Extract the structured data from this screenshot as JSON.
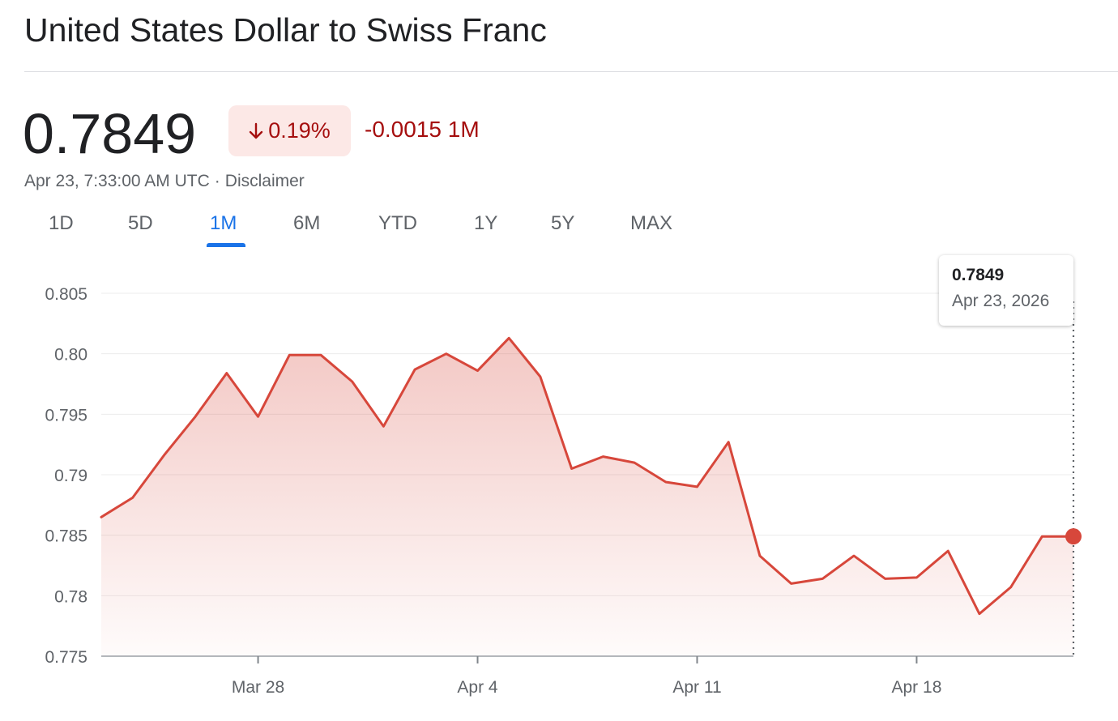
{
  "title": "United States Dollar to Swiss Franc",
  "quote": {
    "price": "0.7849",
    "change_percent": "0.19%",
    "change_abs": "-0.0015 1M",
    "timestamp": "Apr 23, 7:33:00 AM UTC",
    "separator": "·",
    "disclaimer": "Disclaimer"
  },
  "tabs": [
    {
      "label": "1D"
    },
    {
      "label": "5D"
    },
    {
      "label": "1M",
      "active": true
    },
    {
      "label": "6M"
    },
    {
      "label": "YTD"
    },
    {
      "label": "1Y"
    },
    {
      "label": "5Y"
    },
    {
      "label": "MAX"
    }
  ],
  "tooltip": {
    "value": "0.7849",
    "date": "Apr 23, 2026"
  },
  "colors": {
    "line": "#d7473b",
    "negative": "#a50e0e",
    "negative_bg": "#fce8e6",
    "accent": "#1a73e8"
  },
  "chart_data": {
    "type": "area",
    "title": "",
    "xlabel": "",
    "ylabel": "",
    "ylim": [
      0.775,
      0.805
    ],
    "y_ticks": [
      "0.805",
      "0.80",
      "0.795",
      "0.79",
      "0.785",
      "0.78",
      "0.775"
    ],
    "x_ticks": [
      "Mar 28",
      "Apr 4",
      "Apr 11",
      "Apr 18"
    ],
    "grid": true,
    "x": [
      "Mar 23",
      "Mar 24",
      "Mar 25",
      "Mar 26",
      "Mar 27",
      "Mar 28",
      "Mar 29",
      "Mar 30",
      "Mar 31",
      "Apr 1",
      "Apr 2",
      "Apr 3",
      "Apr 4",
      "Apr 5",
      "Apr 6",
      "Apr 7",
      "Apr 8",
      "Apr 9",
      "Apr 10",
      "Apr 11",
      "Apr 12",
      "Apr 13",
      "Apr 14",
      "Apr 15",
      "Apr 16",
      "Apr 17",
      "Apr 18",
      "Apr 19",
      "Apr 20",
      "Apr 21",
      "Apr 22",
      "Apr 23"
    ],
    "series": [
      {
        "values": [
          0.7865,
          0.7881,
          0.7916,
          0.7948,
          0.7984,
          0.7948,
          0.7999,
          0.7999,
          0.7977,
          0.794,
          0.7987,
          0.8,
          0.7986,
          0.8013,
          0.7981,
          0.7905,
          0.7915,
          0.791,
          0.7894,
          0.789,
          0.7927,
          0.7833,
          0.781,
          0.7814,
          0.7833,
          0.7814,
          0.7815,
          0.7837,
          0.7785,
          0.7807,
          0.7849,
          0.7849
        ]
      }
    ]
  }
}
